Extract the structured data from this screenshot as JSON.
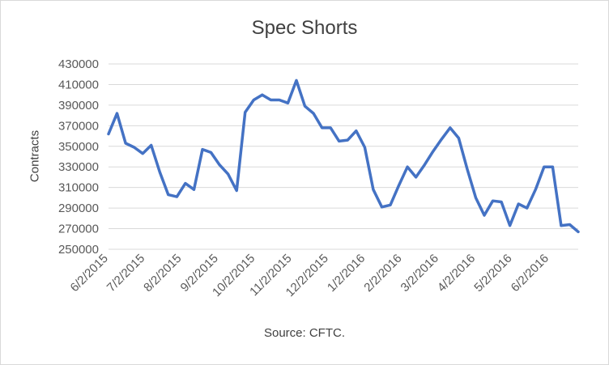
{
  "chart_data": {
    "type": "line",
    "title": "Spec Shorts",
    "ylabel": "Contracts",
    "xlabel": "",
    "annotation": "Source: CFTC.",
    "ylim": [
      250000,
      430000
    ],
    "yticks": [
      250000,
      270000,
      290000,
      310000,
      330000,
      350000,
      370000,
      390000,
      410000,
      430000
    ],
    "xtick_labels": [
      "6/2/2015",
      "7/2/2015",
      "8/2/2015",
      "9/2/2015",
      "10/2/2015",
      "11/2/2015",
      "12/2/2015",
      "1/2/2016",
      "2/2/2016",
      "3/2/2016",
      "4/2/2016",
      "5/2/2016",
      "6/2/2016"
    ],
    "grid": true,
    "legend": "none",
    "color": "#4472c4",
    "series": [
      {
        "values": [
          362000,
          382000,
          353000,
          349000,
          343000,
          351000,
          325000,
          303000,
          301000,
          314000,
          308000,
          347000,
          344000,
          332000,
          323000,
          307000,
          383000,
          395000,
          400000,
          395000,
          395000,
          392000,
          414000,
          389000,
          382000,
          368000,
          368000,
          355000,
          356000,
          365000,
          349000,
          308000,
          291000,
          293000,
          312000,
          330000,
          320000,
          332000,
          345000,
          357000,
          368000,
          358000,
          328000,
          300000,
          283000,
          297000,
          296000,
          273000,
          294000,
          290000,
          308000,
          330000,
          330000,
          273000,
          274000,
          267000
        ]
      }
    ]
  }
}
